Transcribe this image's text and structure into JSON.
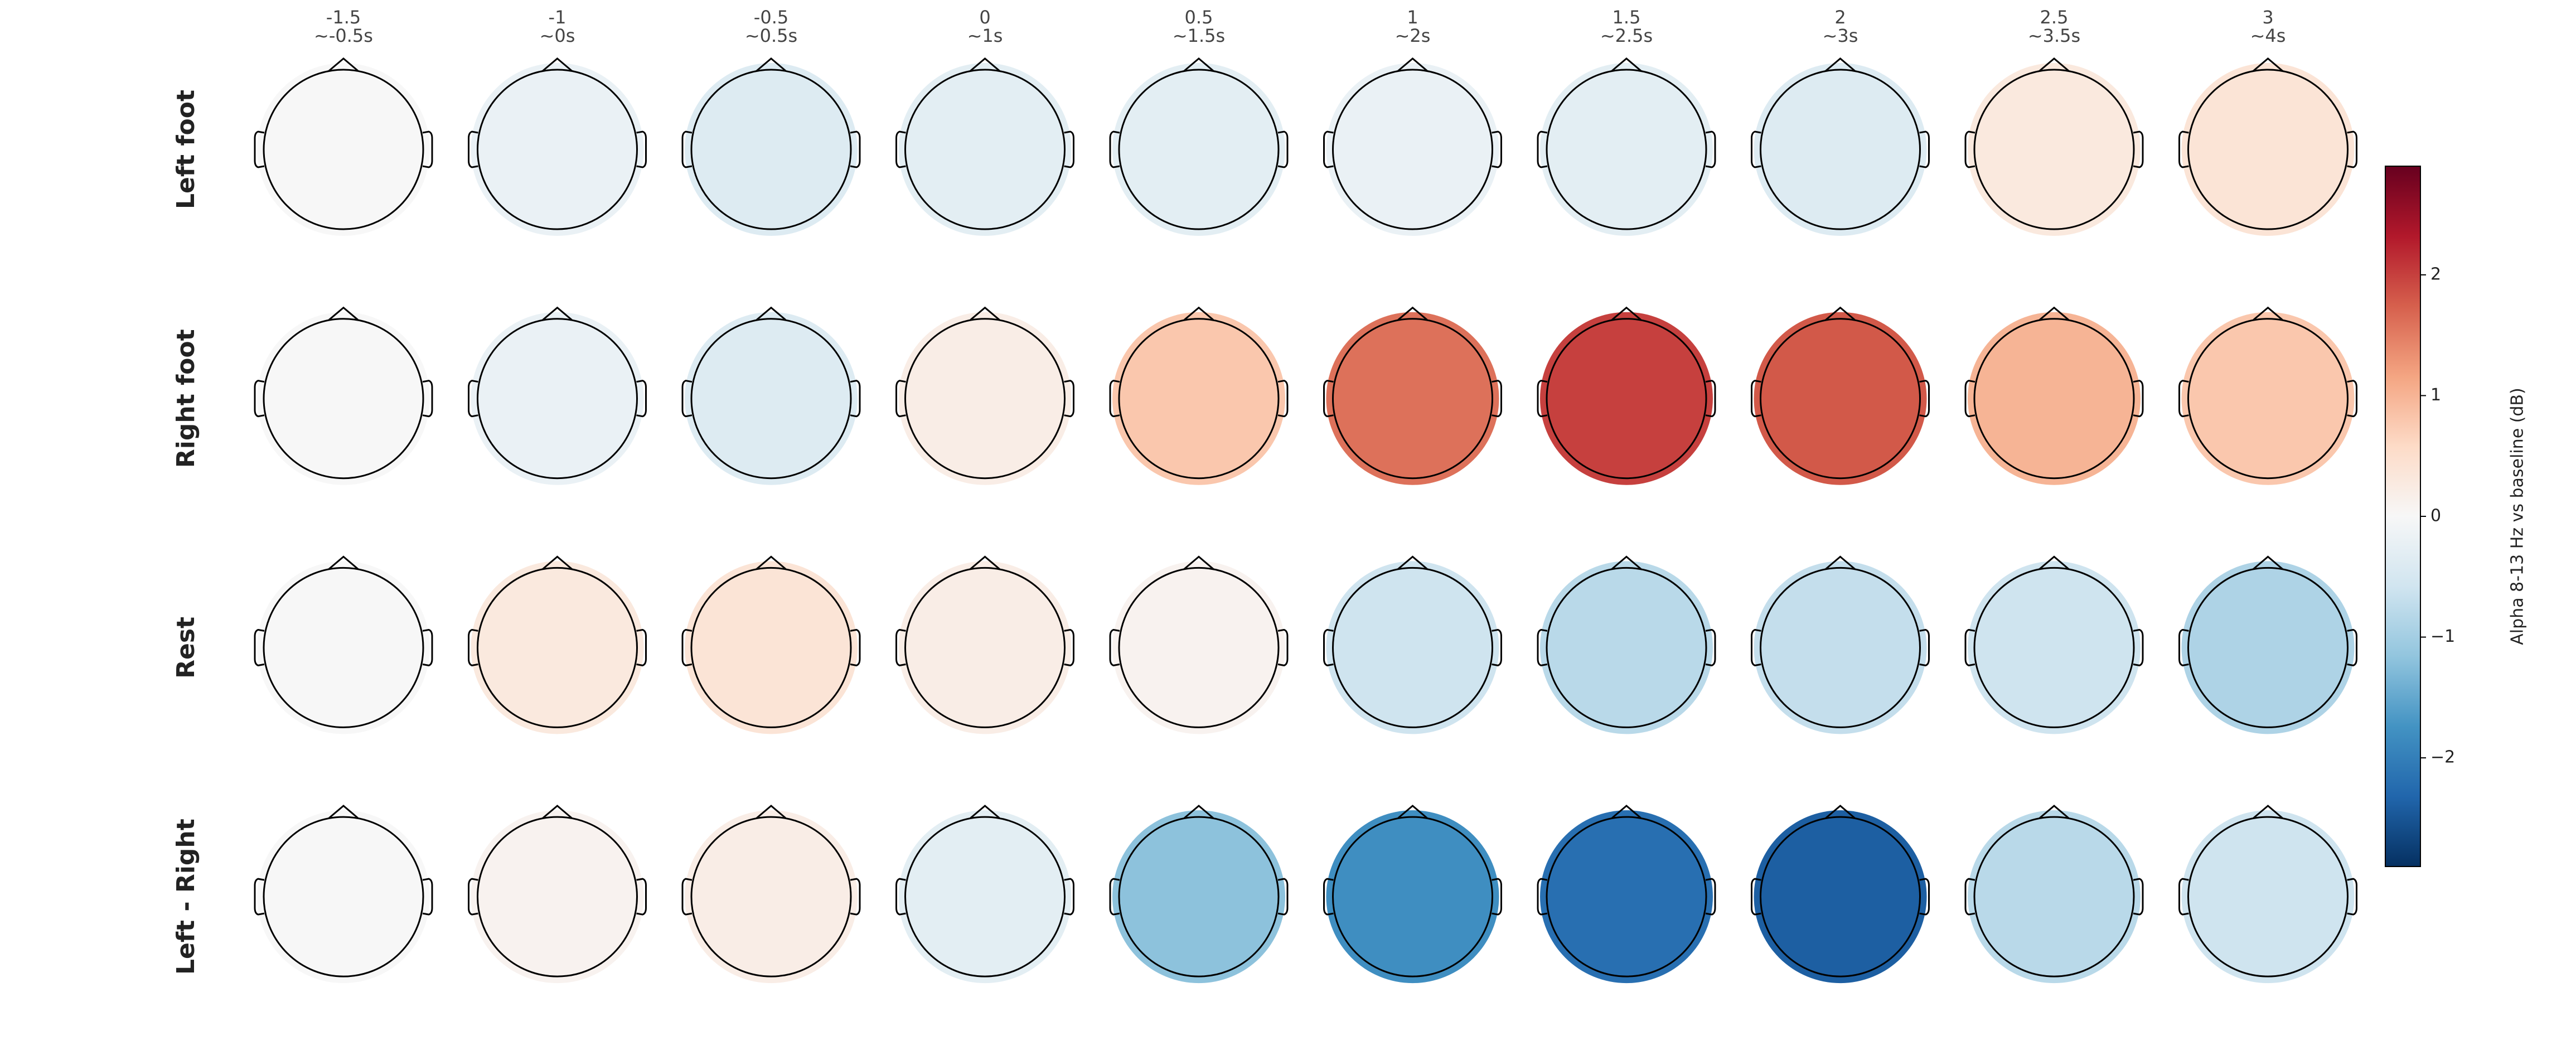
{
  "chart_data": {
    "type": "topomap-grid",
    "categories": [
      "-1.5",
      "-1",
      "-0.5",
      "0",
      "0.5",
      "1",
      "1.5",
      "2",
      "2.5",
      "3"
    ],
    "time_labels": [
      "~-0.5s",
      "~0s",
      "~0.5s",
      "~1s",
      "~1.5s",
      "~2s",
      "~2.5s",
      "~3s",
      "~3.5s",
      "~4s"
    ],
    "rows": [
      "Left foot",
      "Right foot",
      "Rest",
      "Left - Right"
    ],
    "values": [
      [
        0,
        -0.2,
        -0.4,
        -0.3,
        -0.3,
        -0.2,
        -0.3,
        -0.4,
        0.3,
        0.4
      ],
      [
        0,
        -0.2,
        -0.4,
        0.2,
        0.8,
        1.6,
        2.0,
        1.8,
        1.0,
        0.8
      ],
      [
        0,
        0.3,
        0.4,
        0.2,
        0.1,
        -0.6,
        -0.8,
        -0.7,
        -0.6,
        -0.9
      ],
      [
        0,
        0.1,
        0.2,
        -0.3,
        -1.2,
        -1.8,
        -2.2,
        -2.4,
        -0.8,
        -0.6
      ]
    ],
    "colorbar_label": "Alpha 8-13 Hz vs baseline (dB)",
    "clim": [
      -2.9,
      2.9
    ],
    "cticks": [
      {
        "value": -2,
        "label": "−2"
      },
      {
        "value": -1,
        "label": "−1"
      },
      0,
      1,
      2
    ],
    "colormap": [
      "#053061",
      "#2166ac",
      "#4393c3",
      "#92c5de",
      "#d1e5f0",
      "#f7f7f7",
      "#fddbc7",
      "#f4a582",
      "#d6604d",
      "#b2182b",
      "#67001f"
    ]
  }
}
